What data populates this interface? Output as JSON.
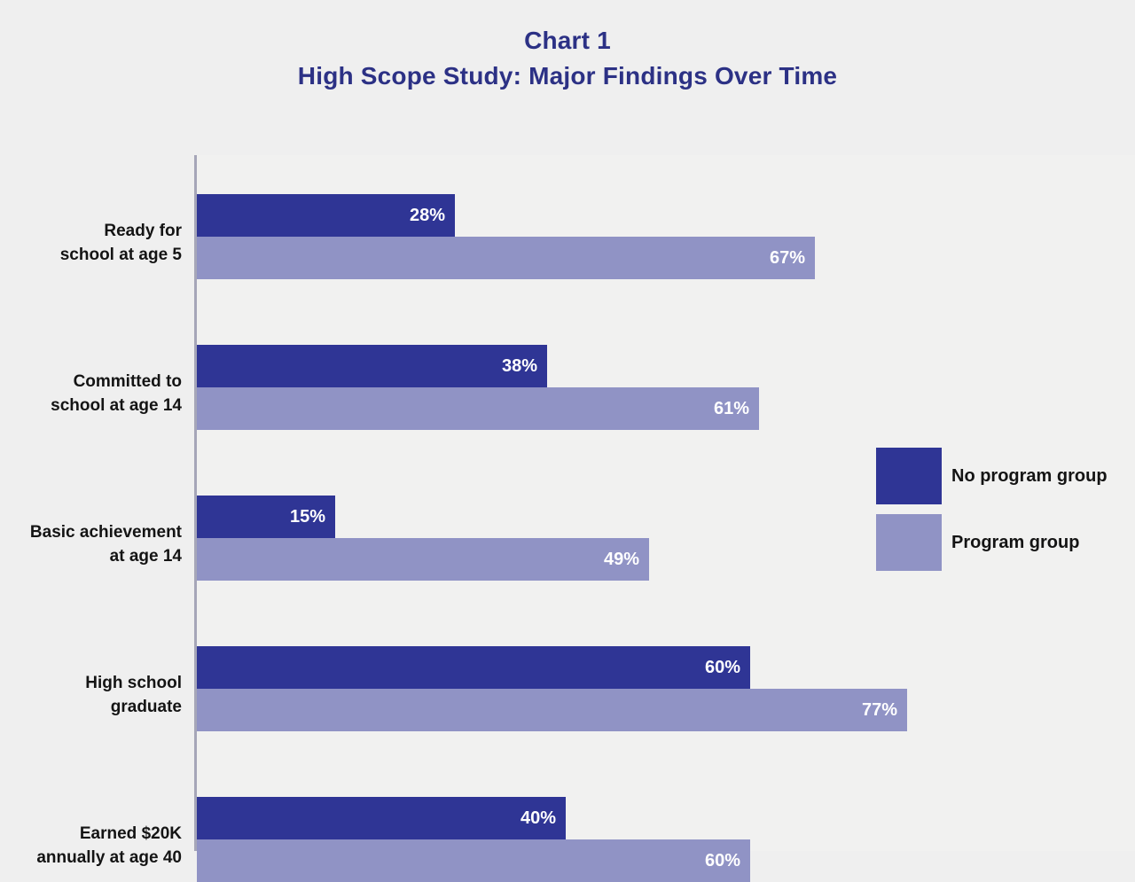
{
  "title": {
    "line1": "Chart 1",
    "line2": "High Scope Study: Major Findings Over Time"
  },
  "colors": {
    "background": "#EFEFEF",
    "plot_background": "#F1F1F0",
    "axis": "#A6A6B8",
    "title_text": "#2C3185",
    "bar_value_text": "#FFFFFF",
    "label_text": "#141414"
  },
  "legend": {
    "items": [
      {
        "label": "No program group",
        "color": "#2F3595"
      },
      {
        "label": "Program group",
        "color": "#9093C5"
      }
    ]
  },
  "chart_data": {
    "type": "bar",
    "orientation": "horizontal",
    "title": "Chart 1",
    "subtitle": "High Scope Study: Major Findings Over Time",
    "xlim": [
      0,
      100
    ],
    "value_suffix": "%",
    "grid": false,
    "legend_position": "right",
    "categories": [
      [
        "Ready for",
        "school at age 5"
      ],
      [
        "Committed to",
        "school at age 14"
      ],
      [
        "Basic achievement",
        "at age 14"
      ],
      [
        "High school",
        "graduate"
      ],
      [
        "Earned $20K",
        "annually at age 40"
      ]
    ],
    "series": [
      {
        "name": "No program group",
        "color": "#2F3595",
        "values": [
          28,
          38,
          15,
          60,
          40
        ]
      },
      {
        "name": "Program group",
        "color": "#9093C5",
        "values": [
          67,
          61,
          49,
          77,
          60
        ]
      }
    ]
  }
}
